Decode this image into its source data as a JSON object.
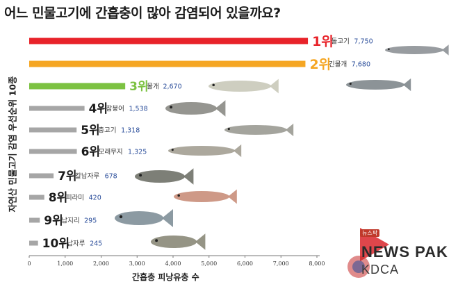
{
  "title": "어느 민물고기에 간흡충이 많아 감염되어 있을까요?",
  "side_label": "자연산 민물고기 감염 우선순위 10종",
  "x_axis_label": "간흡충 피낭유충 수",
  "watermark": {
    "tag": "뉴스팍",
    "brand": "NEWS PAK",
    "org": "KDCA"
  },
  "colors": {
    "rank1": "#e8232a",
    "rank2": "#f5a623",
    "rank3": "#7cc242",
    "others": "#a6a6a6",
    "rank1_label": "#e8232a",
    "rank2_label": "#f5a623",
    "rank3_label": "#7cc242",
    "others_label": "#1a1a1a",
    "value_text": "#2a4d9a"
  },
  "chart_data": {
    "type": "bar",
    "orientation": "horizontal",
    "ranks": [
      "1위",
      "2위",
      "3위",
      "4위",
      "5위",
      "6위",
      "7위",
      "8위",
      "9위",
      "10위"
    ],
    "categories": [
      "돌고기",
      "긴몰개",
      "몰개",
      "참붕어",
      "충고기",
      "모래무지",
      "칼납자루",
      "피라미",
      "납지리",
      "납자루"
    ],
    "value_labels": [
      "7,750",
      "7,680",
      "2,670",
      "1,538",
      "1,318",
      "1,325",
      "678",
      "420",
      "295",
      "245"
    ],
    "values": [
      7750,
      7680,
      2670,
      1538,
      1318,
      1325,
      678,
      420,
      295,
      245
    ],
    "xlabel": "간흡충 피낭유충 수",
    "ylabel": "자연산 민물고기 감염 우선순위 10종",
    "xlim": [
      0,
      8000
    ],
    "x_ticks": [
      0,
      1000,
      2000,
      3000,
      4000,
      5000,
      6000,
      7000,
      8000
    ],
    "x_tick_labels": [
      "0",
      "1,000",
      "2,000",
      "3,000",
      "4,000",
      "5,000",
      "6,000",
      "7,000",
      "8,000"
    ],
    "grid": false,
    "legend": "none"
  }
}
